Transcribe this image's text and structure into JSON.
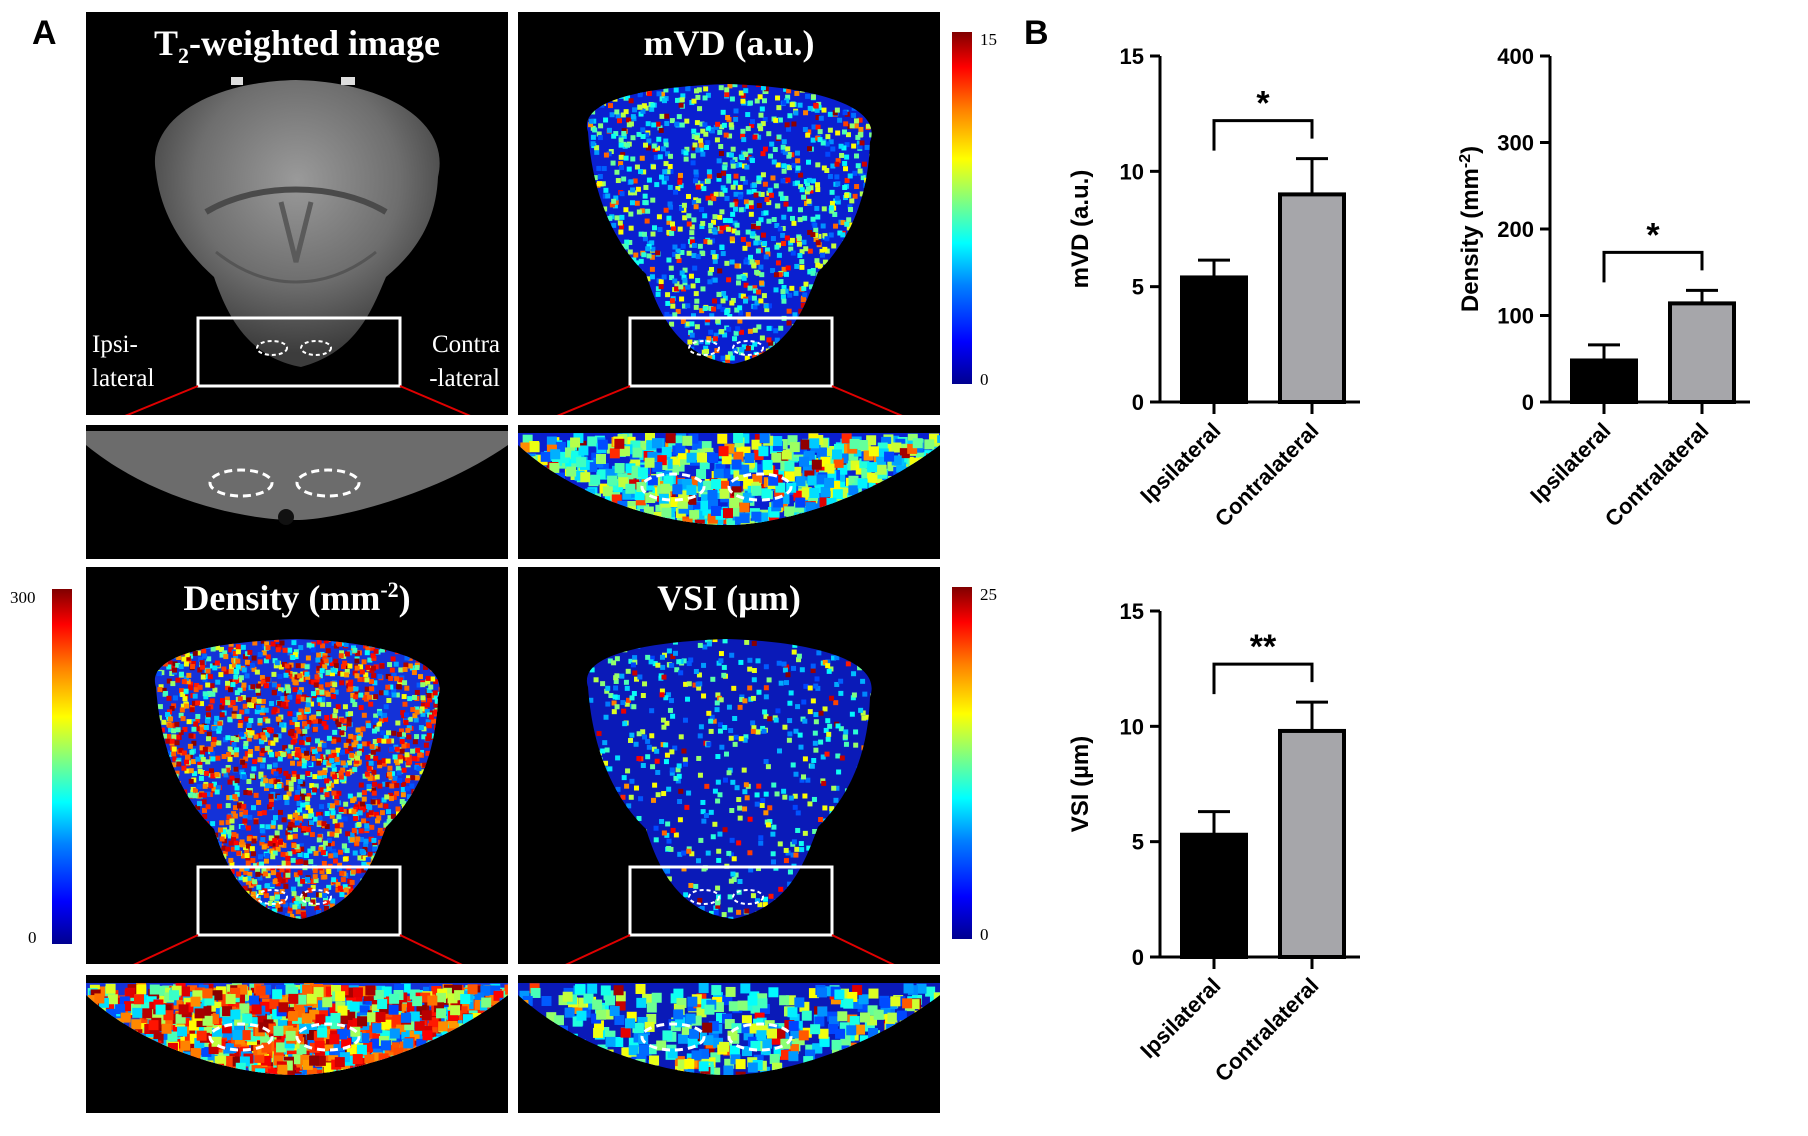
{
  "panel_labels": {
    "a": "A",
    "b": "B"
  },
  "images": {
    "t2": {
      "title_main": "T",
      "title_sub": "2",
      "title_rest": "-weighted image",
      "ipsi_label": "Ipsi-\nlateral",
      "contra_label": "Contra\n-lateral"
    },
    "mvd": {
      "title": "mVD (a.u.)"
    },
    "density": {
      "title_main": "Density (mm",
      "title_sup": "-2",
      "title_end": ")"
    },
    "vsi": {
      "title": "VSI (µm)"
    }
  },
  "colorbars": {
    "mvd": {
      "max": "15",
      "min": "0"
    },
    "density": {
      "max": "300",
      "min": "0"
    },
    "vsi": {
      "max": "25",
      "min": "0"
    }
  },
  "chart_data": [
    {
      "type": "bar",
      "categories": [
        "Ipsilateral",
        "Contralateral"
      ],
      "values": [
        5.4,
        9.0
      ],
      "errors": [
        0.75,
        1.55
      ],
      "ylabel": "mVD (a.u.)",
      "ylim": [
        0,
        15
      ],
      "yticks": [
        0,
        5,
        10,
        15
      ],
      "significance": "*",
      "colors": [
        "#000000",
        "#a6a6aa"
      ]
    },
    {
      "type": "bar",
      "categories": [
        "Ipsilateral",
        "Contralateral"
      ],
      "values": [
        48,
        114
      ],
      "errors": [
        18,
        15
      ],
      "ylabel": "Density (mm",
      "ylabel_sup": "-2",
      "ylabel_end": ")",
      "ylim": [
        0,
        400
      ],
      "yticks": [
        0,
        100,
        200,
        300,
        400
      ],
      "significance": "*",
      "colors": [
        "#000000",
        "#a6a6aa"
      ]
    },
    {
      "type": "bar",
      "categories": [
        "Ipsilateral",
        "Contralateral"
      ],
      "values": [
        5.3,
        9.8
      ],
      "errors": [
        1.0,
        1.25
      ],
      "ylabel": "VSI (µm)",
      "ylim": [
        0,
        15
      ],
      "yticks": [
        0,
        5,
        10,
        15
      ],
      "significance": "**",
      "colors": [
        "#000000",
        "#a6a6aa"
      ]
    }
  ]
}
